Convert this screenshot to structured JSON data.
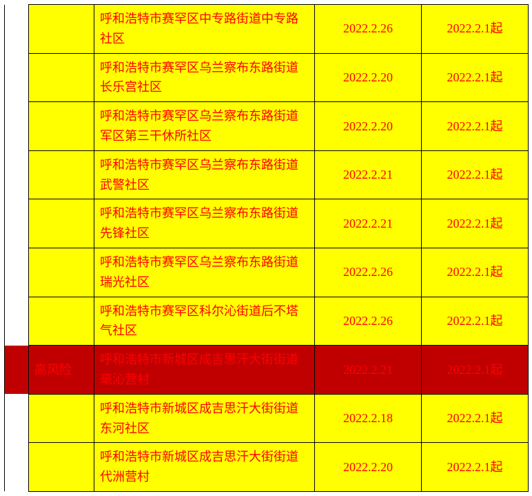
{
  "highRiskLabel": "高风险",
  "rows": [
    {
      "color": "yellow",
      "area": "呼和浩特市赛罕区中专路街道中专路社区",
      "date": "2022.2.26",
      "start": "2022.2.1起",
      "label": ""
    },
    {
      "color": "yellow",
      "area": "呼和浩特市赛罕区乌兰察布东路街道长乐宫社区",
      "date": "2022.2.20",
      "start": "2022.2.1起",
      "label": ""
    },
    {
      "color": "yellow",
      "area": "呼和浩特市赛罕区乌兰察布东路街道军区第三干休所社区",
      "date": "2022.2.20",
      "start": "2022.2.1起",
      "label": ""
    },
    {
      "color": "yellow",
      "area": "呼和浩特市赛罕区乌兰察布东路街道武警社区",
      "date": "2022.2.21",
      "start": "2022.2.1起",
      "label": ""
    },
    {
      "color": "yellow",
      "area": "呼和浩特市赛罕区乌兰察布东路街道先锋社区",
      "date": "2022.2.21",
      "start": "2022.2.1起",
      "label": ""
    },
    {
      "color": "yellow",
      "area": "呼和浩特市赛罕区乌兰察布东路街道瑞光社区",
      "date": "2022.2.26",
      "start": "2022.2.1起",
      "label": ""
    },
    {
      "color": "yellow",
      "area": "呼和浩特市赛罕区科尔沁街道后不塔气社区",
      "date": "2022.2.26",
      "start": "2022.2.1起",
      "label": ""
    },
    {
      "color": "red",
      "area": "呼和浩特市新城区成吉思汗大街街道毫沁营村",
      "date": "2022.2.21",
      "start": "2022.2.1起",
      "label": "高风险"
    },
    {
      "color": "yellow",
      "area": "呼和浩特市新城区成吉思汗大街街道东河社区",
      "date": "2022.2.18",
      "start": "2022.2.1起",
      "label": ""
    },
    {
      "color": "yellow",
      "area": "呼和浩特市新城区成吉思汗大街街道代洲营村",
      "date": "2022.2.20",
      "start": "2022.2.1起",
      "label": ""
    }
  ],
  "style": {
    "yellow": "#ffff00",
    "red": "#c00000",
    "textColor": "#ff0000",
    "borderColor": "#000000",
    "fontFamily": "SimSun",
    "fontSizePt": 14
  }
}
